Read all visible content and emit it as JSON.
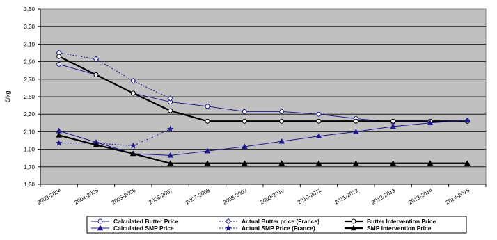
{
  "chart_data": {
    "type": "line",
    "ylabel": "€/kg",
    "ylim": [
      1.5,
      3.5
    ],
    "ytick_step": 0.2,
    "ytick_labels": [
      "1,50",
      "1,70",
      "1,90",
      "2,10",
      "2,30",
      "2,50",
      "2,70",
      "2,90",
      "3,10",
      "3,30",
      "3,50"
    ],
    "categories": [
      "2003-2004",
      "2004-2005",
      "2005-2006",
      "2006-2007",
      "2007-2008",
      "2008-2009",
      "2009-2010",
      "2010-2011",
      "2011-2012",
      "2012-2013",
      "2013-2014",
      "2014-2015"
    ],
    "grid": true,
    "legend_position": "bottom",
    "plot_background": "#c0c0c0",
    "series": [
      {
        "name": "Calculated Butter Price",
        "color": "#1f1a8a",
        "dash": "solid",
        "marker": "circle-open",
        "weight": "normal",
        "values": [
          2.87,
          2.75,
          2.54,
          2.44,
          2.39,
          2.33,
          2.33,
          2.3,
          2.25,
          2.21,
          2.21,
          2.22
        ]
      },
      {
        "name": "Actual Butter price (France)",
        "color": "#1f1a8a",
        "dash": "dotted",
        "marker": "diamond-open",
        "weight": "normal",
        "values": [
          3.0,
          2.93,
          2.68,
          2.48,
          null,
          null,
          null,
          null,
          null,
          null,
          null,
          null
        ]
      },
      {
        "name": "Butter Intervention Price",
        "color": "#000000",
        "dash": "solid",
        "marker": "circle-open",
        "weight": "bold",
        "values": [
          2.96,
          2.75,
          2.54,
          2.34,
          2.22,
          2.22,
          2.22,
          2.22,
          2.22,
          2.22,
          2.22,
          2.22
        ]
      },
      {
        "name": "Calculated SMP Price",
        "color": "#1f1a8a",
        "dash": "solid",
        "marker": "triangle",
        "weight": "normal",
        "values": [
          2.11,
          1.98,
          1.85,
          1.83,
          1.88,
          1.93,
          1.99,
          2.05,
          2.1,
          2.16,
          2.2,
          2.23
        ]
      },
      {
        "name": "Actual SMP Price (France)",
        "color": "#1f1a8a",
        "dash": "dotted",
        "marker": "star",
        "weight": "normal",
        "values": [
          1.97,
          1.97,
          1.94,
          2.13,
          null,
          null,
          null,
          null,
          null,
          null,
          null,
          null
        ]
      },
      {
        "name": "SMP Intervention Price",
        "color": "#000000",
        "dash": "solid",
        "marker": "triangle",
        "weight": "bold",
        "values": [
          2.06,
          1.95,
          1.85,
          1.74,
          1.74,
          1.74,
          1.74,
          1.74,
          1.74,
          1.74,
          1.74,
          1.74
        ]
      }
    ]
  }
}
